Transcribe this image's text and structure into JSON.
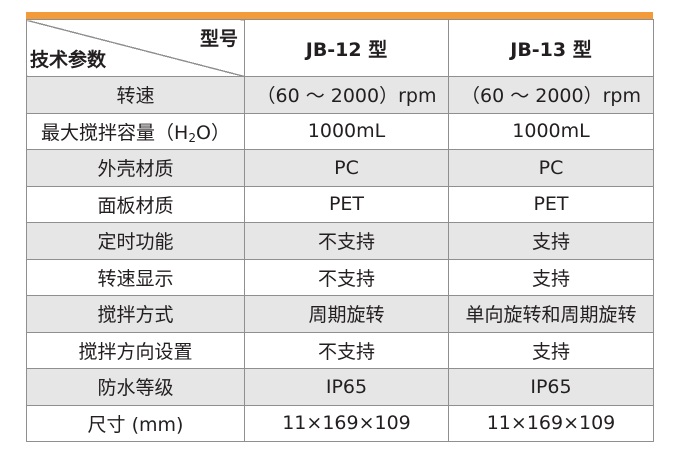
{
  "header": {
    "corner_top_right": "型号",
    "corner_bottom_left": "技术参数",
    "models": [
      "JB-12 型",
      "JB-13 型"
    ]
  },
  "rows": [
    {
      "label": "转速",
      "v1": "（60 ～ 2000）rpm",
      "v2": "（60 ～ 2000）rpm"
    },
    {
      "label_pre": "最大搅拌容量（H",
      "label_sub": "2",
      "label_post": "O）",
      "v1": "1000mL",
      "v2": "1000mL"
    },
    {
      "label": "外壳材质",
      "v1": "PC",
      "v2": "PC"
    },
    {
      "label": "面板材质",
      "v1": "PET",
      "v2": "PET"
    },
    {
      "label": "定时功能",
      "v1": "不支持",
      "v2": "支持"
    },
    {
      "label": "转速显示",
      "v1": "不支持",
      "v2": "支持"
    },
    {
      "label": "搅拌方式",
      "v1": "周期旋转",
      "v2": "单向旋转和周期旋转"
    },
    {
      "label": "搅拌方向设置",
      "v1": "不支持",
      "v2": "支持"
    },
    {
      "label": "防水等级",
      "v1": "IP65",
      "v2": "IP65"
    },
    {
      "label": "尺寸 (mm)",
      "v1": "11×169×109",
      "v2": "11×169×109"
    }
  ],
  "colors": {
    "accent_bar": "#f39a3b",
    "shade_row": "#e6e6e6",
    "grid_line": "#8f8f8f"
  }
}
